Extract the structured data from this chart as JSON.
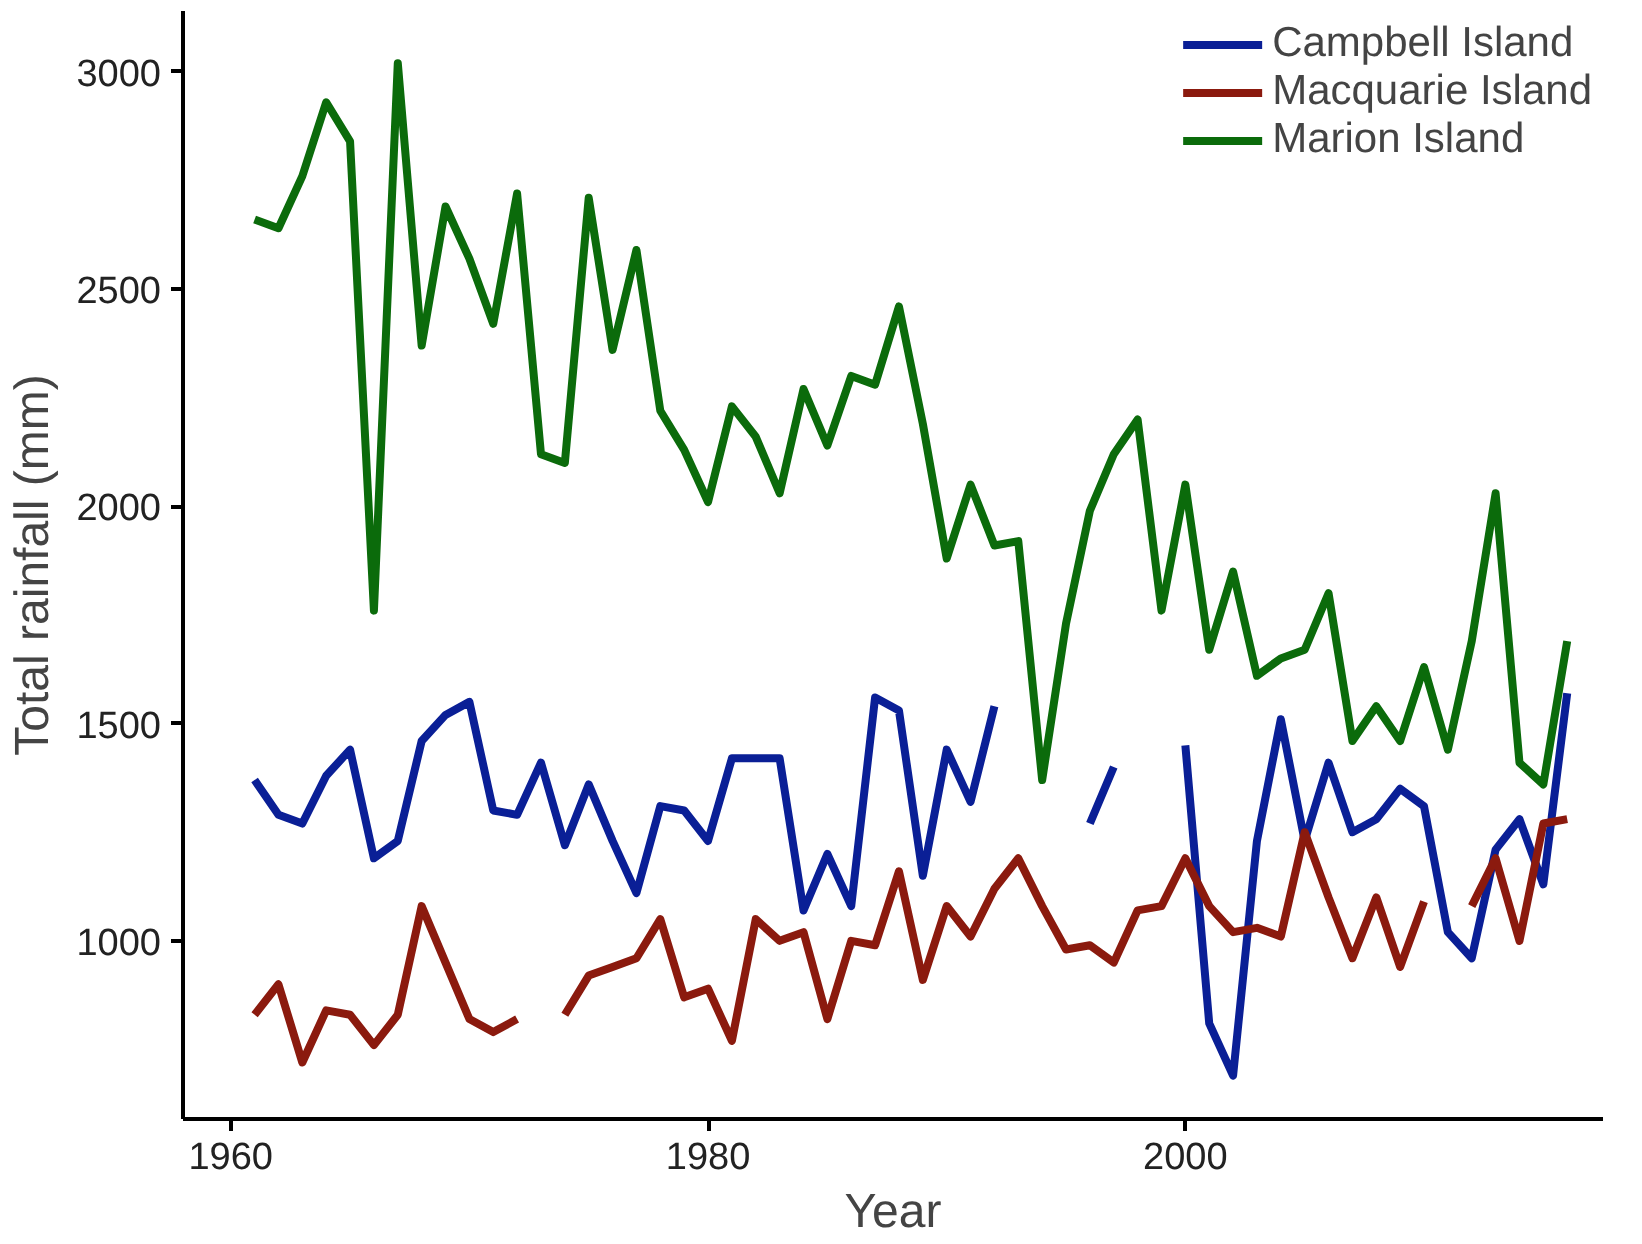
{
  "chart_data": {
    "type": "line",
    "xlabel": "Year",
    "ylabel": "Total rainfall (mm)",
    "x": [
      1961,
      1962,
      1963,
      1964,
      1965,
      1966,
      1967,
      1968,
      1969,
      1970,
      1971,
      1972,
      1973,
      1974,
      1975,
      1976,
      1977,
      1978,
      1979,
      1980,
      1981,
      1982,
      1983,
      1984,
      1985,
      1986,
      1987,
      1988,
      1989,
      1990,
      1991,
      1992,
      1993,
      1994,
      1995,
      1996,
      1997,
      1998,
      1999,
      2000,
      2001,
      2002,
      2003,
      2004,
      2005,
      2006,
      2007,
      2008,
      2009,
      2010,
      2011,
      2012,
      2013,
      2014,
      2015,
      2016
    ],
    "series": [
      {
        "name": "Campbell Island",
        "color": "#0a1f96",
        "values": [
          1370,
          1290,
          1270,
          1380,
          1440,
          1190,
          1230,
          1460,
          1520,
          1550,
          1300,
          1290,
          1410,
          1220,
          1360,
          1230,
          1110,
          1310,
          1300,
          1230,
          1420,
          1420,
          1420,
          1070,
          1200,
          1080,
          1560,
          1530,
          1150,
          1440,
          1320,
          1540,
          null,
          null,
          null,
          1270,
          1400,
          null,
          null,
          1450,
          810,
          690,
          1230,
          1510,
          1230,
          1410,
          1250,
          1280,
          1350,
          1310,
          1020,
          960,
          1210,
          1280,
          1130,
          1570
        ]
      },
      {
        "name": "Macquarie Island",
        "color": "#8b1a0e",
        "values": [
          830,
          900,
          720,
          840,
          830,
          760,
          830,
          1080,
          950,
          820,
          790,
          820,
          null,
          830,
          920,
          940,
          960,
          1050,
          870,
          890,
          770,
          1050,
          1000,
          1020,
          820,
          1000,
          990,
          1160,
          910,
          1080,
          1010,
          1120,
          1190,
          1080,
          980,
          990,
          950,
          1070,
          1080,
          1190,
          1080,
          1020,
          1030,
          1010,
          1250,
          1100,
          960,
          1100,
          940,
          1090,
          null,
          1080,
          1190,
          1000,
          1270,
          1280
        ]
      },
      {
        "name": "Marion Island",
        "color": "#0b6b0b",
        "values": [
          2660,
          2640,
          2760,
          2930,
          2840,
          1760,
          3020,
          2370,
          2690,
          2570,
          2420,
          2720,
          2120,
          2100,
          2710,
          2360,
          2590,
          2220,
          2130,
          2010,
          2230,
          2160,
          2030,
          2270,
          2140,
          2300,
          2280,
          2460,
          2190,
          1880,
          2050,
          1910,
          1920,
          1370,
          1730,
          1990,
          2120,
          2200,
          1760,
          2050,
          1670,
          1850,
          1610,
          1650,
          1670,
          1800,
          1460,
          1540,
          1460,
          1630,
          1440,
          1690,
          2030,
          1410,
          1360,
          1690
        ]
      }
    ],
    "xlim": [
      1958,
      2017.5
    ],
    "ylim": [
      590,
      3140
    ],
    "xticks": [
      1960,
      1980,
      2000
    ],
    "yticks": [
      1000,
      1500,
      2000,
      2500,
      3000
    ],
    "grid": false,
    "legend": "top right",
    "line_style": "solid",
    "marker": "none"
  }
}
